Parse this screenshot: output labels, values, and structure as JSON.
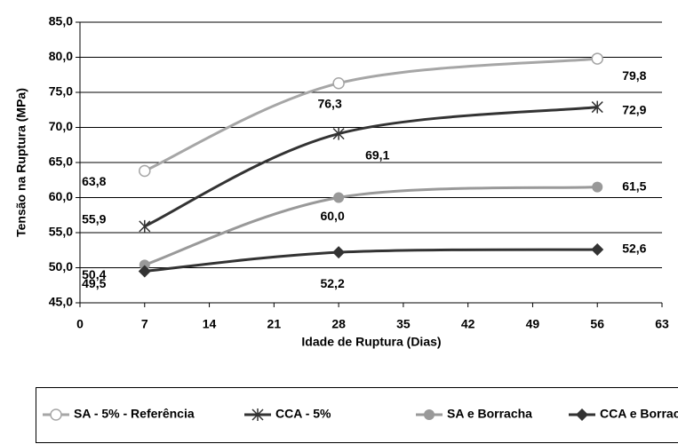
{
  "chart_data": {
    "type": "line",
    "x_label": "Idade de Ruptura (Dias)",
    "y_label": "Tensão na Ruptura (MPa)",
    "x": [
      7,
      28,
      56
    ],
    "xlim": [
      0,
      63
    ],
    "xticks": [
      0,
      7,
      14,
      21,
      28,
      35,
      42,
      49,
      56,
      63
    ],
    "ylim": [
      45,
      85
    ],
    "yticks": [
      {
        "value": 45,
        "label": "45,0"
      },
      {
        "value": 50,
        "label": "50,0"
      },
      {
        "value": 55,
        "label": "55,0"
      },
      {
        "value": 60,
        "label": "60,0"
      },
      {
        "value": 65,
        "label": "65,0"
      },
      {
        "value": 70,
        "label": "70,0"
      },
      {
        "value": 75,
        "label": "75,0"
      },
      {
        "value": 80,
        "label": "80,0"
      },
      {
        "value": 85,
        "label": "85,0"
      }
    ],
    "grid": true,
    "legend": "bottom",
    "series": [
      {
        "name": "SA - 5% - Referência",
        "color": "#a6a6a6",
        "marker": "open-circle",
        "values": [
          63.8,
          76.3,
          79.8
        ],
        "value_labels": [
          "63,8",
          "76,3",
          "79,8"
        ]
      },
      {
        "name": "CCA - 5%",
        "color": "#333333",
        "marker": "asterisk",
        "values": [
          55.9,
          69.1,
          72.9
        ],
        "value_labels": [
          "55,9",
          "69,1",
          "72,9"
        ]
      },
      {
        "name": "SA e Borracha",
        "color": "#999999",
        "marker": "circle",
        "values": [
          50.4,
          60.0,
          61.5
        ],
        "value_labels": [
          "50,4",
          "60,0",
          "61,5"
        ]
      },
      {
        "name": "CCA e Borracha",
        "color": "#333333",
        "marker": "diamond",
        "values": [
          49.5,
          52.2,
          52.6
        ],
        "value_labels": [
          "49,5",
          "52,2",
          "52,6"
        ]
      }
    ]
  }
}
